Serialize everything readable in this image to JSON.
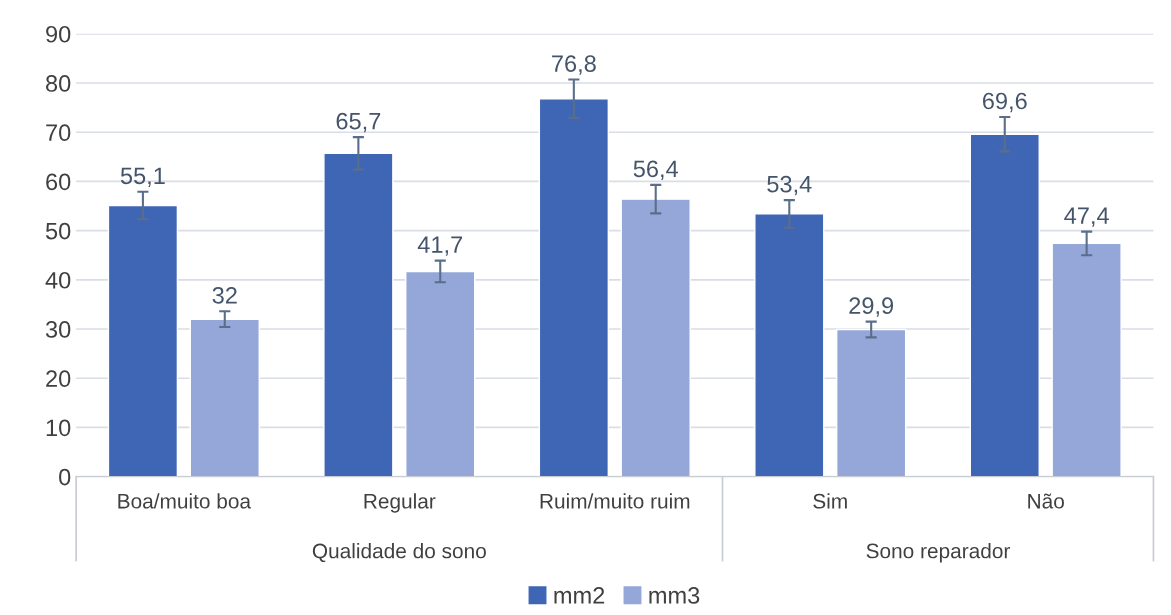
{
  "chart_data": {
    "type": "bar",
    "categories": [
      "Boa/muito boa",
      "Regular",
      "Ruim/muito ruim",
      "Sim",
      "Não"
    ],
    "series": [
      {
        "name": "mm2",
        "color": "#3f66b5",
        "values": [
          55.1,
          65.7,
          76.8,
          53.4,
          69.6
        ],
        "errors": [
          2.8,
          3.3,
          3.9,
          2.8,
          3.5
        ],
        "value_labels": [
          "55,1",
          "65,7",
          "76,8",
          "53,4",
          "69,6"
        ]
      },
      {
        "name": "mm3",
        "color": "#94a7d8",
        "values": [
          32,
          41.7,
          56.4,
          29.9,
          47.4
        ],
        "errors": [
          1.6,
          2.2,
          2.9,
          1.6,
          2.4
        ],
        "value_labels": [
          "32",
          "41,7",
          "56,4",
          "29,9",
          "47,4"
        ]
      }
    ],
    "annotations": [
      "Qualidade do sono",
      "Sono reparador"
    ],
    "ylim": [
      0,
      90
    ],
    "yticks": [
      0,
      10,
      20,
      30,
      40,
      50,
      60,
      70,
      80,
      90
    ],
    "grid": "y",
    "legend": "bottom"
  }
}
